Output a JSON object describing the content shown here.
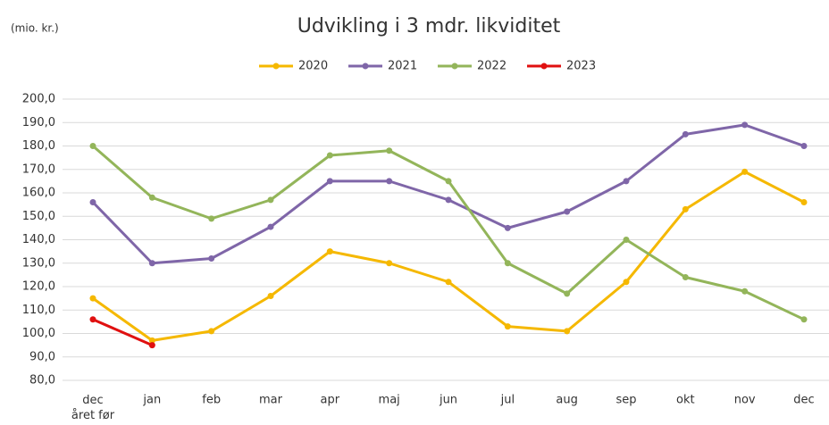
{
  "chart_data": {
    "type": "line",
    "title": "Udvikling i 3 mdr. likviditet",
    "y_unit_label": "(mio. kr.)",
    "categories": [
      "dec\nåret før",
      "jan",
      "feb",
      "mar",
      "apr",
      "maj",
      "jun",
      "jul",
      "aug",
      "sep",
      "okt",
      "nov",
      "dec"
    ],
    "series": [
      {
        "name": "2020",
        "color": "#f5b800",
        "values": [
          115,
          97,
          101,
          116,
          135,
          130,
          122,
          103,
          101,
          122,
          153,
          169,
          156
        ]
      },
      {
        "name": "2021",
        "color": "#7f66a8",
        "values": [
          156,
          130,
          132,
          145.5,
          165,
          165,
          157,
          145,
          152,
          165,
          185,
          189,
          180
        ]
      },
      {
        "name": "2022",
        "color": "#93b55a",
        "values": [
          180,
          158,
          149,
          157,
          176,
          178,
          165,
          130,
          117,
          140,
          124,
          118,
          106
        ]
      },
      {
        "name": "2023",
        "color": "#e01010",
        "values": [
          106,
          95,
          null,
          null,
          null,
          null,
          null,
          null,
          null,
          null,
          null,
          null,
          null
        ]
      }
    ],
    "ylim": [
      80,
      200
    ],
    "yticks": [
      {
        "value": 80,
        "label": "80,0"
      },
      {
        "value": 90,
        "label": "90,0"
      },
      {
        "value": 100,
        "label": "100,0"
      },
      {
        "value": 110,
        "label": "110,0"
      },
      {
        "value": 120,
        "label": "120,0"
      },
      {
        "value": 130,
        "label": "130,0"
      },
      {
        "value": 140,
        "label": "140,0"
      },
      {
        "value": 150,
        "label": "150,0"
      },
      {
        "value": 160,
        "label": "160,0"
      },
      {
        "value": 170,
        "label": "170,0"
      },
      {
        "value": 180,
        "label": "180,0"
      },
      {
        "value": 190,
        "label": "190,0"
      },
      {
        "value": 200,
        "label": "200,0"
      }
    ],
    "grid": true,
    "legend": "top"
  }
}
